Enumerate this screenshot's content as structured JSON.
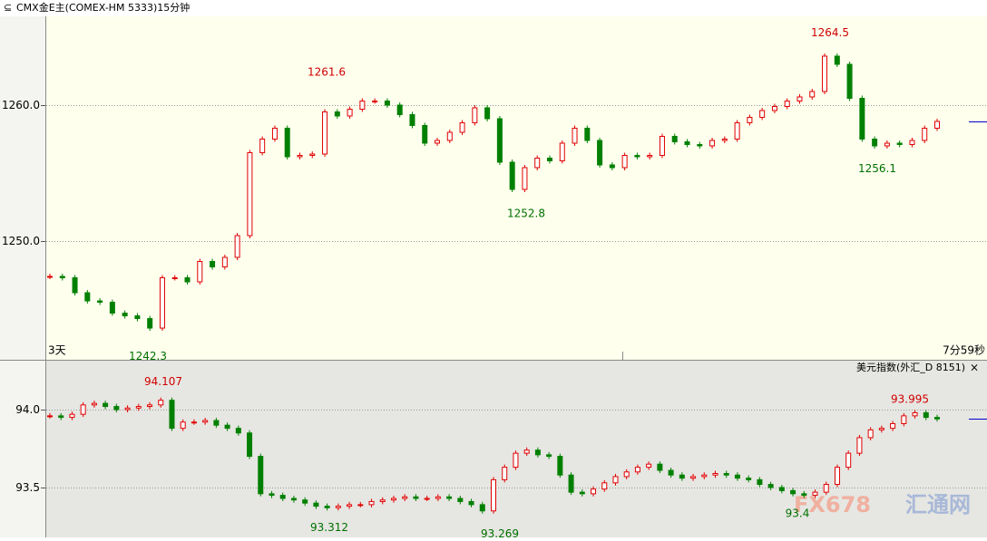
{
  "header": {
    "title": "CMX金E主(COMEX-HM 5333)15分钟"
  },
  "chart_data": [
    {
      "type": "candlestick",
      "up_color": "#e00000",
      "down_color": "#008000",
      "left_label": "3天",
      "right_label": "7分59秒",
      "values": [
        1247.4,
        1247.3,
        1246.2,
        1245.6,
        1245.5,
        1244.7,
        1244.5,
        1244.3,
        1243.6,
        1247.3,
        1247.3,
        1247.0,
        1248.5,
        1248.1,
        1248.8,
        1250.4,
        1256.5,
        1257.5,
        1258.3,
        1256.2,
        1256.3,
        1256.4,
        1259.5,
        1259.2,
        1259.7,
        1260.3,
        1260.3,
        1260.0,
        1259.3,
        1258.5,
        1257.2,
        1257.4,
        1258.0,
        1258.7,
        1259.8,
        1259.0,
        1255.8,
        1253.8,
        1255.4,
        1256.1,
        1255.9,
        1257.2,
        1258.3,
        1257.4,
        1255.6,
        1255.4,
        1256.3,
        1256.2,
        1256.3,
        1257.7,
        1257.3,
        1257.1,
        1257.0,
        1257.4,
        1257.5,
        1258.7,
        1259.1,
        1259.6,
        1259.9,
        1260.3,
        1260.6,
        1261.0,
        1263.6,
        1263.0,
        1260.5,
        1257.5,
        1257.0,
        1257.2,
        1257.1,
        1257.4,
        1258.3,
        1258.8
      ],
      "ylim": [
        1241.27,
        1266.53
      ],
      "yticks": [
        {
          "value": 1250,
          "label": "1250.0"
        },
        {
          "value": 1260,
          "label": "1260.0"
        }
      ],
      "annotations": [
        1261.6,
        1264.5,
        1242.3,
        1252.8,
        1256.1
      ]
    },
    {
      "type": "candlestick",
      "up_color": "#e00000",
      "down_color": "#008000",
      "title": "美元指数(外汇_D 8151)",
      "values": [
        93.96,
        93.95,
        93.97,
        94.03,
        94.04,
        94.02,
        94.0,
        94.01,
        94.02,
        94.03,
        94.06,
        93.88,
        93.92,
        93.92,
        93.93,
        93.9,
        93.88,
        93.85,
        93.7,
        93.46,
        93.45,
        93.43,
        93.42,
        93.4,
        93.38,
        93.37,
        93.38,
        93.39,
        93.39,
        93.41,
        93.42,
        93.43,
        93.44,
        93.43,
        93.43,
        93.44,
        93.43,
        93.41,
        93.39,
        93.35,
        93.55,
        93.63,
        93.72,
        93.74,
        93.71,
        93.7,
        93.58,
        93.47,
        93.46,
        93.49,
        93.53,
        93.57,
        93.6,
        93.63,
        93.65,
        93.61,
        93.58,
        93.56,
        93.57,
        93.58,
        93.59,
        93.58,
        93.56,
        93.55,
        93.52,
        93.5,
        93.48,
        93.46,
        93.45,
        93.47,
        93.52,
        93.63,
        93.72,
        93.82,
        93.87,
        93.88,
        93.91,
        93.96,
        93.98,
        93.95,
        93.94
      ],
      "ylim": [
        93.18,
        94.314
      ],
      "yticks": [
        93.5,
        {
          "value": 94,
          "label": "94.0"
        }
      ],
      "annotations": [
        94.107,
        93.995,
        93.312,
        93.269,
        93.4
      ]
    }
  ],
  "watermark": {
    "brand": "FX678",
    "site": "汇通网"
  }
}
